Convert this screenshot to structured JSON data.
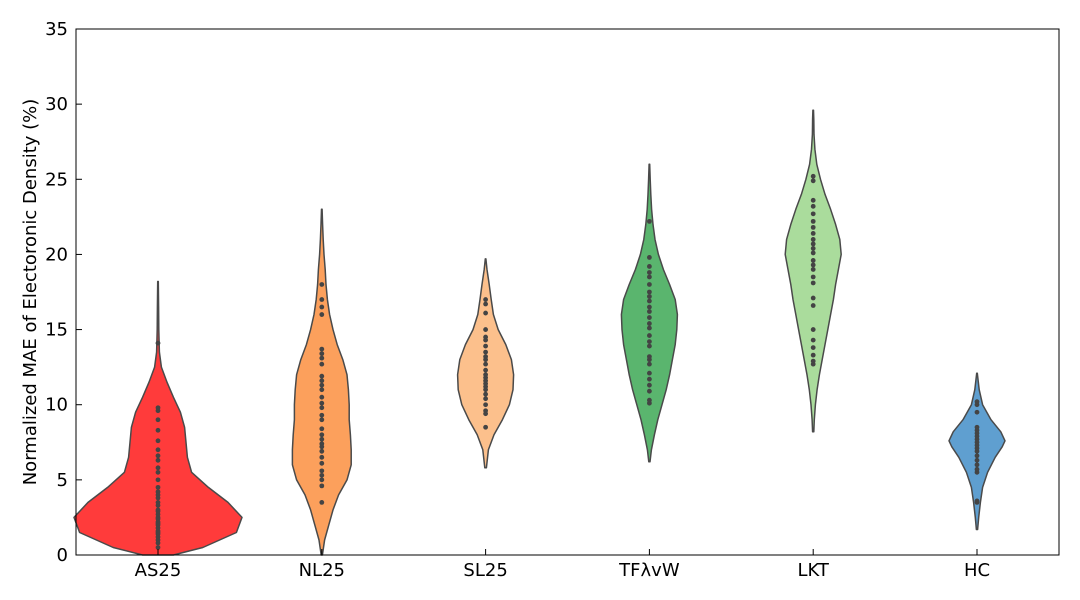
{
  "chart_data": {
    "type": "violin",
    "title": "",
    "xlabel": "",
    "ylabel": "Normalized MAE of Electoronic Density (%)",
    "ylim": [
      0,
      35
    ],
    "yticks": [
      0,
      5,
      10,
      15,
      20,
      25,
      30,
      35
    ],
    "grid": false,
    "categories": [
      "AS25",
      "NL25",
      "SL25",
      "TFλvW",
      "LKT",
      "HC"
    ],
    "colors": [
      "#ff3b3b",
      "#fca05c",
      "#fcc08c",
      "#5ab56e",
      "#aadc9c",
      "#5f9fd0"
    ],
    "series": [
      {
        "category": "AS25",
        "density": [
          [
            0,
            0.55
          ],
          [
            0.5,
            1.6
          ],
          [
            1.5,
            2.8
          ],
          [
            2.5,
            3.0
          ],
          [
            3.5,
            2.5
          ],
          [
            4.5,
            1.8
          ],
          [
            5.5,
            1.2
          ],
          [
            6.5,
            1.05
          ],
          [
            7.5,
            1.0
          ],
          [
            8.5,
            0.95
          ],
          [
            9.5,
            0.8
          ],
          [
            10.5,
            0.55
          ],
          [
            11.5,
            0.32
          ],
          [
            12.5,
            0.12
          ],
          [
            13.5,
            0.05
          ],
          [
            15,
            0.03
          ],
          [
            16.5,
            0.02
          ],
          [
            18.2,
            0.01
          ]
        ],
        "points": [
          0.5,
          0.8,
          1.0,
          1.2,
          1.4,
          1.5,
          1.6,
          1.8,
          2.0,
          2.1,
          2.2,
          2.4,
          2.5,
          2.7,
          2.9,
          3.0,
          3.3,
          3.5,
          3.8,
          4.0,
          4.2,
          4.5,
          5.0,
          5.5,
          5.8,
          6.3,
          6.6,
          7.0,
          7.6,
          8.3,
          9.0,
          9.6,
          9.8,
          14.1
        ]
      },
      {
        "category": "NL25",
        "density": [
          [
            0,
            0.02
          ],
          [
            1,
            0.1
          ],
          [
            2,
            0.25
          ],
          [
            3,
            0.4
          ],
          [
            4,
            0.6
          ],
          [
            5,
            0.9
          ],
          [
            6,
            1.05
          ],
          [
            7,
            1.05
          ],
          [
            8,
            1.02
          ],
          [
            9,
            0.98
          ],
          [
            10,
            0.98
          ],
          [
            11,
            0.95
          ],
          [
            12,
            0.9
          ],
          [
            13,
            0.75
          ],
          [
            14,
            0.55
          ],
          [
            15,
            0.4
          ],
          [
            16,
            0.28
          ],
          [
            17,
            0.2
          ],
          [
            18,
            0.15
          ],
          [
            19,
            0.12
          ],
          [
            20,
            0.08
          ],
          [
            21,
            0.05
          ],
          [
            22,
            0.03
          ],
          [
            23,
            0.01
          ]
        ],
        "points": [
          3.5,
          4.6,
          5.0,
          5.3,
          5.6,
          6.1,
          6.5,
          6.9,
          7.2,
          7.4,
          7.7,
          8.0,
          8.4,
          9.0,
          9.3,
          9.8,
          10.1,
          10.5,
          11.0,
          11.3,
          11.6,
          11.9,
          12.7,
          13.1,
          13.4,
          13.7,
          16.0,
          16.5,
          17.0,
          18.0
        ]
      },
      {
        "category": "SL25",
        "density": [
          [
            5.8,
            0.03
          ],
          [
            7,
            0.1
          ],
          [
            8,
            0.3
          ],
          [
            9,
            0.6
          ],
          [
            10,
            0.85
          ],
          [
            11,
            0.98
          ],
          [
            12,
            1.0
          ],
          [
            13,
            0.92
          ],
          [
            14,
            0.72
          ],
          [
            15,
            0.45
          ],
          [
            16,
            0.28
          ],
          [
            17,
            0.2
          ],
          [
            18,
            0.13
          ],
          [
            19,
            0.05
          ],
          [
            19.7,
            0.01
          ]
        ],
        "points": [
          8.5,
          9.4,
          9.6,
          10.0,
          10.4,
          10.7,
          11.0,
          11.2,
          11.4,
          11.6,
          11.8,
          12.0,
          12.3,
          12.7,
          13.0,
          13.2,
          13.5,
          13.9,
          14.3,
          14.5,
          15.0,
          16.1,
          16.7,
          17.0
        ]
      },
      {
        "category": "TFλvW",
        "density": [
          [
            6.2,
            0.02
          ],
          [
            7,
            0.07
          ],
          [
            8,
            0.18
          ],
          [
            9,
            0.3
          ],
          [
            10,
            0.45
          ],
          [
            11,
            0.6
          ],
          [
            12,
            0.72
          ],
          [
            13,
            0.82
          ],
          [
            14,
            0.92
          ],
          [
            15,
            0.98
          ],
          [
            16,
            1.0
          ],
          [
            17,
            0.92
          ],
          [
            18,
            0.72
          ],
          [
            19,
            0.5
          ],
          [
            20,
            0.32
          ],
          [
            21,
            0.2
          ],
          [
            22,
            0.13
          ],
          [
            23,
            0.08
          ],
          [
            24,
            0.05
          ],
          [
            25,
            0.03
          ],
          [
            26,
            0.01
          ]
        ],
        "points": [
          10.1,
          10.3,
          10.9,
          11.3,
          11.7,
          12.1,
          12.7,
          13.0,
          13.2,
          13.9,
          14.2,
          14.6,
          15.1,
          15.4,
          15.8,
          16.2,
          16.5,
          16.9,
          17.2,
          17.5,
          18.0,
          18.5,
          18.8,
          19.2,
          19.8,
          22.2
        ]
      },
      {
        "category": "LKT",
        "density": [
          [
            8.2,
            0.02
          ],
          [
            9,
            0.04
          ],
          [
            10,
            0.08
          ],
          [
            11,
            0.14
          ],
          [
            12,
            0.22
          ],
          [
            13,
            0.32
          ],
          [
            14,
            0.42
          ],
          [
            15,
            0.52
          ],
          [
            16,
            0.62
          ],
          [
            17,
            0.72
          ],
          [
            18,
            0.8
          ],
          [
            19,
            0.9
          ],
          [
            20,
            1.0
          ],
          [
            21,
            0.95
          ],
          [
            22,
            0.8
          ],
          [
            23,
            0.62
          ],
          [
            24,
            0.42
          ],
          [
            25,
            0.26
          ],
          [
            26,
            0.13
          ],
          [
            27,
            0.06
          ],
          [
            28,
            0.03
          ],
          [
            29,
            0.02
          ],
          [
            29.6,
            0.01
          ]
        ],
        "points": [
          12.7,
          12.9,
          13.3,
          13.8,
          14.3,
          15.0,
          16.6,
          17.1,
          18.1,
          18.5,
          19.0,
          19.3,
          19.6,
          20.1,
          20.4,
          20.7,
          21.0,
          21.4,
          21.8,
          22.2,
          22.7,
          23.2,
          23.6,
          24.9,
          25.2
        ]
      },
      {
        "category": "HC",
        "density": [
          [
            1.7,
            0.02
          ],
          [
            2.5,
            0.06
          ],
          [
            3.5,
            0.12
          ],
          [
            4.5,
            0.2
          ],
          [
            5.5,
            0.38
          ],
          [
            6.5,
            0.65
          ],
          [
            7.2,
            0.9
          ],
          [
            7.6,
            1.0
          ],
          [
            8.2,
            0.85
          ],
          [
            9,
            0.5
          ],
          [
            10,
            0.2
          ],
          [
            11,
            0.08
          ],
          [
            12.1,
            0.01
          ]
        ],
        "points": [
          3.5,
          3.6,
          5.5,
          5.7,
          6.0,
          6.3,
          6.6,
          6.9,
          7.1,
          7.3,
          7.5,
          7.7,
          7.9,
          8.1,
          8.3,
          8.5,
          9.5,
          10.0,
          10.2
        ]
      }
    ]
  }
}
